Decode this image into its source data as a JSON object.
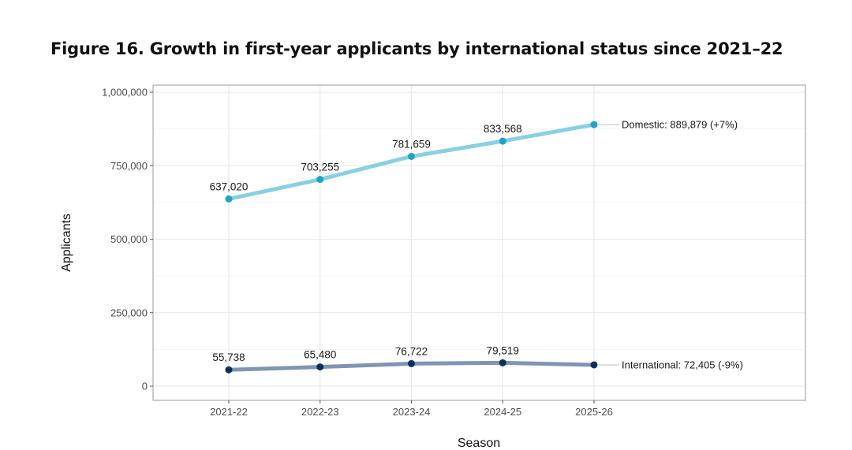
{
  "figure": {
    "title": "Figure 16. Growth in first-year applicants by international status since 2021–22"
  },
  "chart_data": {
    "type": "line",
    "title": "Figure 16. Growth in first-year applicants by international status since 2021–22",
    "xlabel": "Season",
    "ylabel": "Applicants",
    "categories": [
      "2021-22",
      "2022-23",
      "2023-24",
      "2024-25",
      "2025-26"
    ],
    "ylim": [
      0,
      1000000
    ],
    "yticks": [
      0,
      250000,
      500000,
      750000,
      1000000
    ],
    "ytick_labels": [
      "0",
      "250,000",
      "500,000",
      "750,000",
      "1,000,000"
    ],
    "grid": true,
    "series": [
      {
        "name": "Domestic",
        "values": [
          637020,
          703255,
          781659,
          833568,
          889879
        ],
        "point_labels": [
          "637,020",
          "703,255",
          "781,659",
          "833,568"
        ],
        "end_label": "Domestic: 889,879 (+7%)",
        "line_color": "#87d0e4",
        "point_color": "#1fa3c7"
      },
      {
        "name": "International",
        "values": [
          55738,
          65480,
          76722,
          79519,
          72405
        ],
        "point_labels": [
          "55,738",
          "65,480",
          "76,722",
          "79,519"
        ],
        "end_label": "International: 72,405 (-9%)",
        "line_color": "#7f95b5",
        "point_color": "#0d2f5e"
      }
    ]
  }
}
